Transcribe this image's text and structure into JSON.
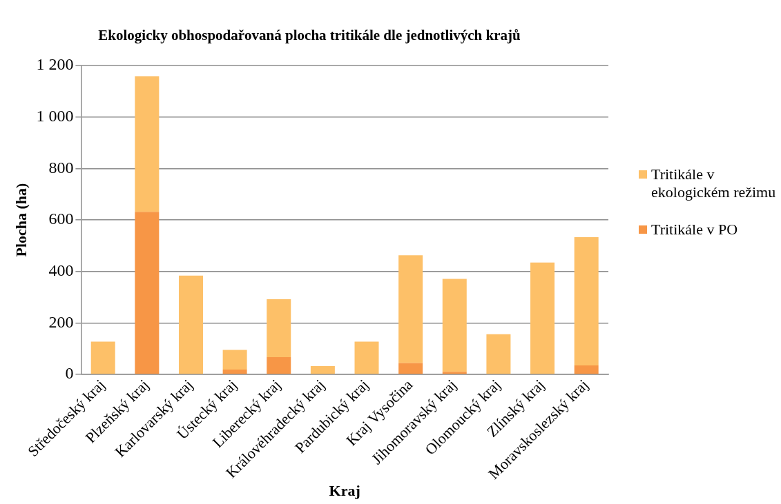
{
  "chart_data": {
    "type": "bar",
    "stacked": true,
    "title": "Ekologicky obhospodařovaná plocha tritikále dle jednotlivých krajů",
    "xlabel": "Kraj",
    "ylabel": "Plocha (ha)",
    "categories": [
      "Středočeský kraj",
      "Plzeňský kraj",
      "Karlovarský kraj",
      "Ústecký kraj",
      "Liberecký kraj",
      "Královéhradecký kraj",
      "Pardubický kraj",
      "Kraj Vysočina",
      "Jihomoravský kraj",
      "Olomoucký kraj",
      "Zlínský kraj",
      "Moravskoslezský kraj"
    ],
    "series": [
      {
        "name": "Tritikále v PO",
        "color": "#f79646",
        "values": [
          0,
          632,
          0,
          19,
          67,
          0,
          0,
          44,
          10,
          0,
          0,
          35
        ]
      },
      {
        "name": "Tritikále v ekologickém režimu",
        "color": "#fdc068",
        "values": [
          127,
          527,
          384,
          76,
          225,
          32,
          127,
          419,
          361,
          156,
          435,
          498
        ]
      }
    ],
    "ylim": [
      0,
      1200
    ],
    "yticks": [
      {
        "value": 0,
        "label": "0"
      },
      {
        "value": 200,
        "label": "200"
      },
      {
        "value": 400,
        "label": "400"
      },
      {
        "value": 600,
        "label": "600"
      },
      {
        "value": 800,
        "label": "800"
      },
      {
        "value": 1000,
        "label": "1 000"
      },
      {
        "value": 1200,
        "label": "1 200"
      }
    ],
    "grid": "y",
    "legend": "right"
  }
}
